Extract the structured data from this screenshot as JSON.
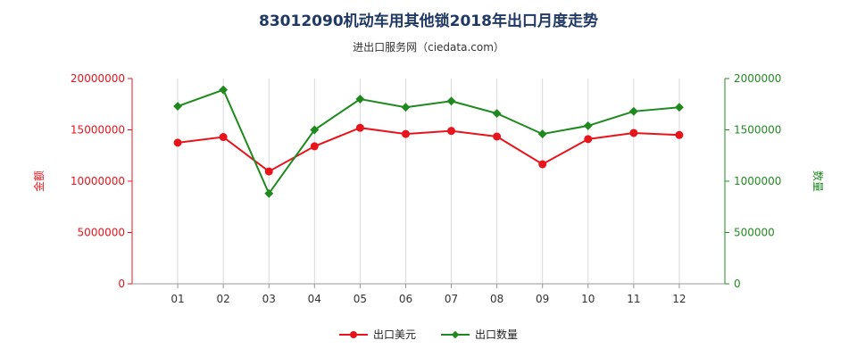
{
  "chart_data": {
    "type": "line",
    "title": "83012090机动车用其他锁2018年出口月度走势",
    "subtitle": "进出口服务网（ciedata.com）",
    "x_categories": [
      "01",
      "02",
      "03",
      "04",
      "05",
      "06",
      "07",
      "08",
      "09",
      "10",
      "11",
      "12"
    ],
    "left_axis": {
      "label": "金额",
      "ylim": [
        0,
        20000000
      ],
      "ticks": [
        "0",
        "5000000",
        "10000000",
        "15000000",
        "20000000"
      ],
      "color": "#e8141b"
    },
    "right_axis": {
      "label": "数量",
      "ylim": [
        0,
        2000000
      ],
      "ticks": [
        "0",
        "500000",
        "1000000",
        "1500000",
        "2000000"
      ],
      "color": "#228b22"
    },
    "series": [
      {
        "name": "出口美元",
        "axis": "left",
        "color": "#e8141b",
        "marker": "circle",
        "values": [
          13750000,
          14300000,
          10950000,
          13400000,
          15200000,
          14600000,
          14900000,
          14350000,
          11650000,
          14100000,
          14700000,
          14500000
        ]
      },
      {
        "name": "出口数量",
        "axis": "right",
        "color": "#1e8a1e",
        "marker": "diamond",
        "values": [
          1730000,
          1890000,
          880000,
          1500000,
          1800000,
          1720000,
          1780000,
          1660000,
          1460000,
          1540000,
          1680000,
          1720000
        ]
      }
    ],
    "grid": "vertical",
    "legend_position": "bottom-center"
  }
}
